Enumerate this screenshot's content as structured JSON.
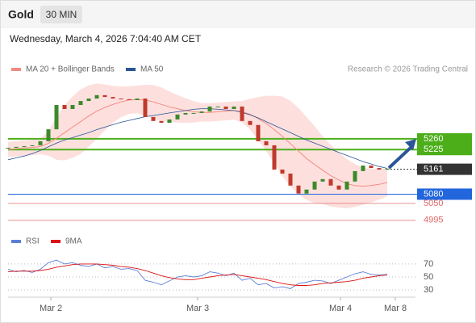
{
  "header": {
    "title": "Gold",
    "timeframe": "30 MIN",
    "date": "Wednesday, March 4, 2026 7:04:40 AM CET",
    "credit": "Research © 2026 Trading Central"
  },
  "chart_data": [
    {
      "type": "candlestick",
      "x": [
        0,
        1,
        2,
        3,
        4,
        5,
        6,
        7,
        8,
        9,
        10,
        11,
        12,
        13,
        14,
        15,
        16,
        17,
        18,
        19,
        20,
        21,
        22,
        23,
        24,
        25,
        26,
        27,
        28,
        29,
        30,
        31,
        32,
        33,
        34,
        35,
        36,
        37,
        38,
        39,
        40,
        41,
        42,
        43,
        44,
        45,
        46,
        47
      ],
      "xlim": [
        0,
        50.5
      ],
      "xticks": [
        {
          "value": 5.3,
          "label": "Mar 2"
        },
        {
          "value": 23.5,
          "label": "Mar 3"
        },
        {
          "value": 41.2,
          "label": "Mar 4"
        },
        {
          "value": 48,
          "label": "Mar 8"
        }
      ],
      "ylim": [
        4963,
        5462
      ],
      "close": [
        5231,
        5234,
        5236,
        5239,
        5252,
        5291,
        5370,
        5357,
        5370,
        5383,
        5391,
        5402,
        5396,
        5391,
        5389,
        5386,
        5391,
        5331,
        5318,
        5312,
        5323,
        5339,
        5344,
        5344,
        5349,
        5365,
        5365,
        5357,
        5365,
        5318,
        5305,
        5252,
        5239,
        5160,
        5147,
        5108,
        5082,
        5095,
        5121,
        5129,
        5108,
        5095,
        5121,
        5155,
        5173,
        5165,
        5160,
        5163
      ],
      "up_color": "#3a8a2a",
      "down_color": "#c0392b",
      "series": [
        {
          "name": "MA 20 + Bollinger Bands",
          "color": "#f28b82",
          "band_color": "#fde0de",
          "values": [
            5225,
            5228,
            5230,
            5232,
            5235,
            5245,
            5262,
            5280,
            5298,
            5316,
            5334,
            5350,
            5362,
            5372,
            5380,
            5386,
            5388,
            5386,
            5380,
            5372,
            5364,
            5358,
            5352,
            5348,
            5346,
            5346,
            5348,
            5350,
            5352,
            5348,
            5340,
            5326,
            5310,
            5290,
            5268,
            5244,
            5220,
            5196,
            5176,
            5158,
            5140,
            5126,
            5114,
            5108,
            5106,
            5108,
            5112,
            5118
          ],
          "upper": [
            5250,
            5253,
            5255,
            5257,
            5260,
            5285,
            5332,
            5370,
            5398,
            5421,
            5434,
            5440,
            5437,
            5432,
            5430,
            5431,
            5433,
            5436,
            5435,
            5427,
            5414,
            5403,
            5392,
            5383,
            5376,
            5376,
            5378,
            5380,
            5382,
            5383,
            5390,
            5396,
            5400,
            5400,
            5398,
            5384,
            5360,
            5331,
            5301,
            5268,
            5240,
            5216,
            5194,
            5178,
            5166,
            5163,
            5162,
            5163
          ],
          "lower": [
            5200,
            5203,
            5205,
            5207,
            5210,
            5205,
            5192,
            5190,
            5198,
            5211,
            5234,
            5260,
            5287,
            5312,
            5330,
            5341,
            5343,
            5336,
            5325,
            5317,
            5314,
            5313,
            5312,
            5313,
            5316,
            5316,
            5318,
            5320,
            5322,
            5313,
            5290,
            5256,
            5220,
            5180,
            5138,
            5104,
            5080,
            5061,
            5051,
            5048,
            5040,
            5036,
            5034,
            5038,
            5046,
            5053,
            5062,
            5073
          ]
        },
        {
          "name": "MA 50",
          "color": "#2b5597",
          "values": [
            5192,
            5198,
            5204,
            5212,
            5222,
            5234,
            5246,
            5256,
            5264,
            5272,
            5280,
            5290,
            5298,
            5306,
            5314,
            5320,
            5326,
            5332,
            5336,
            5340,
            5344,
            5348,
            5352,
            5356,
            5358,
            5358,
            5356,
            5354,
            5352,
            5346,
            5338,
            5328,
            5316,
            5304,
            5292,
            5280,
            5268,
            5256,
            5246,
            5236,
            5226,
            5216,
            5206,
            5196,
            5186,
            5178,
            5170,
            5164
          ]
        }
      ],
      "levels": [
        {
          "value": 5260,
          "color": "#4caf1a",
          "kind": "box"
        },
        {
          "value": 5225,
          "color": "#4caf1a",
          "kind": "box"
        },
        {
          "value": 5161,
          "color": "#333333",
          "kind": "current"
        },
        {
          "value": 5080,
          "color": "#2266dd",
          "kind": "box"
        },
        {
          "value": 5050,
          "color": "#e06666",
          "kind": "text"
        },
        {
          "value": 4995,
          "color": "#e06666",
          "kind": "text"
        }
      ]
    },
    {
      "type": "line",
      "ylim": [
        19,
        91
      ],
      "yticks": [
        30,
        50,
        70
      ],
      "series": [
        {
          "name": "RSI",
          "color": "#5b7fd6",
          "values": [
            62,
            58,
            60,
            57,
            62,
            72,
            76,
            70,
            72,
            68,
            66,
            70,
            64,
            66,
            62,
            63,
            60,
            45,
            42,
            38,
            44,
            50,
            52,
            50,
            52,
            58,
            56,
            52,
            56,
            45,
            48,
            38,
            40,
            33,
            35,
            32,
            40,
            42,
            45,
            44,
            40,
            45,
            50,
            55,
            58,
            54,
            53,
            54
          ]
        },
        {
          "name": "9MA",
          "color": "#dd1111",
          "values": [
            58,
            59,
            59,
            59,
            60,
            62,
            65,
            67,
            69,
            70,
            70,
            70,
            69,
            68,
            66,
            65,
            63,
            60,
            56,
            52,
            49,
            47,
            46,
            46,
            48,
            50,
            52,
            53,
            54,
            52,
            50,
            48,
            46,
            43,
            40,
            38,
            37,
            37,
            38,
            40,
            41,
            42,
            43,
            45,
            48,
            50,
            52,
            53
          ]
        }
      ]
    }
  ]
}
